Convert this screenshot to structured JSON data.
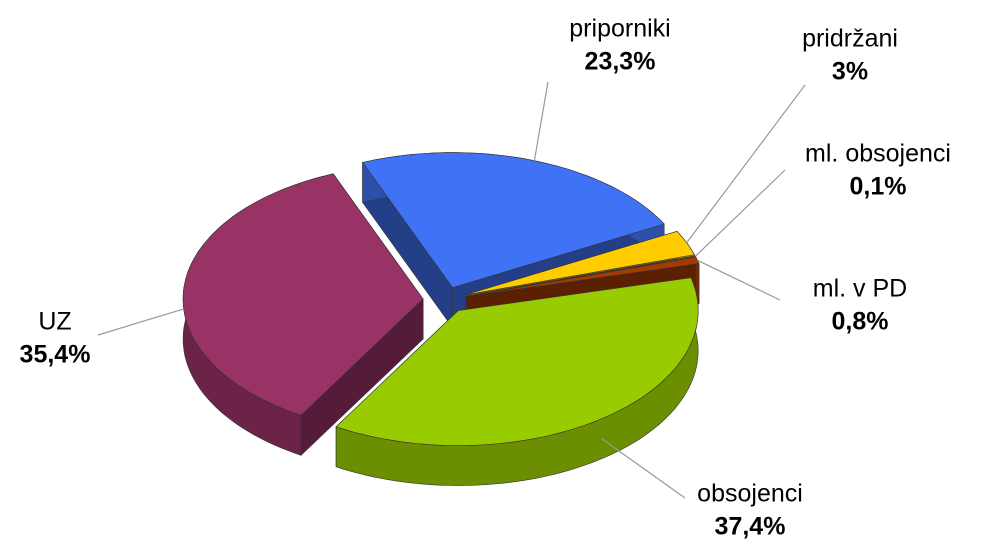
{
  "chart_data": {
    "type": "pie",
    "categories": [
      "priporniki",
      "pridržani",
      "ml. obsojenci",
      "ml. v PD",
      "obsojenci",
      "UZ"
    ],
    "values": [
      23.3,
      3,
      0.1,
      0.8,
      37.4,
      35.4
    ],
    "value_labels": [
      "23,3%",
      "3%",
      "0,1%",
      "0,8%",
      "37,4%",
      "35,4%"
    ],
    "colors": [
      "#3f72f5",
      "#ffcc00",
      "#ff6a00",
      "#a33a00",
      "#99cc00",
      "#993366"
    ]
  }
}
